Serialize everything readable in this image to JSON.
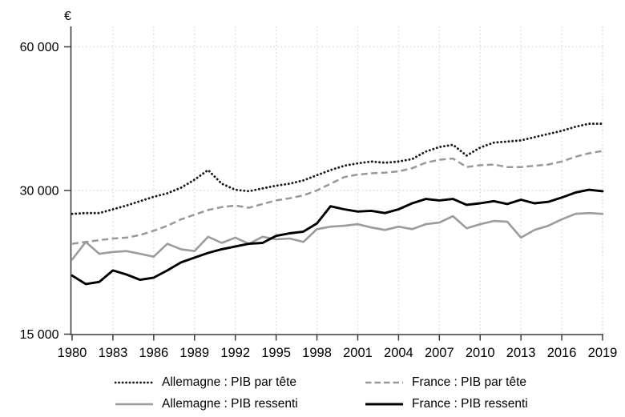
{
  "chart_data": {
    "type": "line",
    "title": "",
    "ylabel": "€",
    "xlabel": "",
    "y_scale": "log2",
    "xlim": [
      1980,
      2019
    ],
    "ylim": [
      15000,
      66000
    ],
    "grid": "dotted-light",
    "legend_position": "bottom",
    "x_ticks": [
      1980,
      1983,
      1986,
      1989,
      1992,
      1995,
      1998,
      2001,
      2004,
      2007,
      2010,
      2013,
      2016,
      2019
    ],
    "x_tick_labels": [
      "1980",
      "1983",
      "1986",
      "1989",
      "1992",
      "1995",
      "1998",
      "2001",
      "2004",
      "2007",
      "2010",
      "2013",
      "2016",
      "2019"
    ],
    "y_ticks": [
      {
        "value": 60000,
        "label": "60 000"
      },
      {
        "value": 30000,
        "label": "30 000"
      },
      {
        "value": 15000,
        "label": "15 000"
      }
    ],
    "x_start": 1980,
    "x_end": 2019,
    "series": [
      {
        "id": "allemagne-pib-par-tete",
        "name": "Allemagne : PIB par tête",
        "color": "#1a1a1a",
        "style": "dotted",
        "values": [
          26800,
          26900,
          26900,
          27400,
          27900,
          28500,
          29100,
          29600,
          30400,
          31600,
          33100,
          31000,
          30100,
          29900,
          30300,
          30700,
          31000,
          31500,
          32300,
          33100,
          33800,
          34200,
          34500,
          34300,
          34500,
          34900,
          36200,
          37000,
          37400,
          35500,
          36900,
          37800,
          38000,
          38200,
          38800,
          39400,
          40000,
          40800,
          41400,
          41400
        ]
      },
      {
        "id": "france-pib-par-tete",
        "name": "France : PIB par tête",
        "color": "#999999",
        "style": "dashed",
        "values": [
          23200,
          23400,
          23600,
          23800,
          23900,
          24200,
          24700,
          25300,
          26100,
          26700,
          27300,
          27700,
          27900,
          27600,
          28100,
          28600,
          28900,
          29300,
          30000,
          31000,
          32000,
          32400,
          32600,
          32700,
          32900,
          33400,
          34300,
          34800,
          35000,
          33600,
          33900,
          34000,
          33600,
          33600,
          33800,
          34000,
          34500,
          35300,
          35900,
          36300
        ]
      },
      {
        "id": "allemagne-pib-ressenti",
        "name": "Allemagne : PIB ressenti",
        "color": "#9c9c9c",
        "style": "solid",
        "values": [
          21500,
          23400,
          22100,
          22300,
          22400,
          22100,
          21800,
          23200,
          22600,
          22400,
          24000,
          23300,
          23900,
          23200,
          24000,
          23700,
          23800,
          23400,
          24900,
          25200,
          25300,
          25500,
          25100,
          24800,
          25200,
          24900,
          25500,
          25700,
          26500,
          25000,
          25500,
          25900,
          25800,
          23900,
          24800,
          25300,
          26100,
          26800,
          26900,
          26800
        ]
      },
      {
        "id": "france-pib-ressenti",
        "name": "France : PIB ressenti",
        "color": "#000000",
        "style": "solid-bold",
        "values": [
          19900,
          19100,
          19300,
          20400,
          20000,
          19500,
          19700,
          20400,
          21200,
          21700,
          22200,
          22600,
          22900,
          23200,
          23300,
          24100,
          24400,
          24600,
          25600,
          27800,
          27400,
          27100,
          27200,
          26900,
          27400,
          28200,
          28800,
          28600,
          28800,
          28000,
          28200,
          28500,
          28100,
          28700,
          28200,
          28400,
          29000,
          29700,
          30100,
          29900
        ]
      }
    ],
    "colors": {
      "background": "#ffffff",
      "axis": "#3d3d3d",
      "gridline": "#dcdcdc",
      "tick_text": "#000000"
    }
  }
}
